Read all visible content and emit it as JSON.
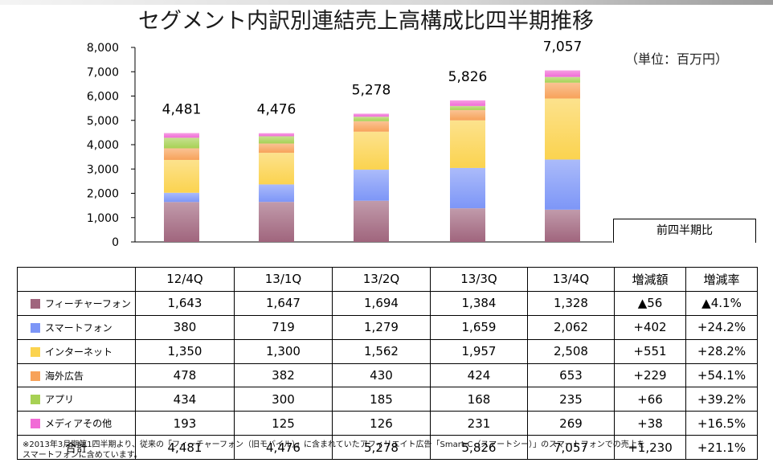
{
  "page": {
    "title": "セグメント内訳別連結売上高構成比四半期推移",
    "unit": "（単位：百万円）",
    "footnote_lines": [
      "※2013年3月期第1四半期より、従来の「フィーチャーフォン（旧モバイル）」に含まれていたアフィリエイト広告「Smart-C（スマートシー）」のスマートフォンでの売上を",
      "スマートフォンに含めています。"
    ]
  },
  "chart_data": {
    "type": "bar",
    "stacked": true,
    "title": "セグメント内訳別連結売上高構成比四半期推移",
    "categories": [
      "12/4Q",
      "13/1Q",
      "13/2Q",
      "13/3Q",
      "13/4Q"
    ],
    "series": [
      {
        "name": "フィーチャーフォン",
        "values": [
          1643,
          1647,
          1694,
          1384,
          1328
        ],
        "color": "#a0657d"
      },
      {
        "name": "スマートフォン",
        "values": [
          380,
          719,
          1279,
          1659,
          2062
        ],
        "color": "#7d96f7"
      },
      {
        "name": "インターネット",
        "values": [
          1350,
          1300,
          1562,
          1957,
          2508
        ],
        "color": "#fbd34f"
      },
      {
        "name": "海外広告",
        "values": [
          478,
          382,
          430,
          424,
          653
        ],
        "color": "#f7a25a"
      },
      {
        "name": "アプリ",
        "values": [
          434,
          300,
          185,
          168,
          235
        ],
        "color": "#a7d154"
      },
      {
        "name": "メディアその他",
        "values": [
          193,
          125,
          126,
          231,
          269
        ],
        "color": "#f16bd6"
      }
    ],
    "totals": [
      4481,
      4476,
      5278,
      5826,
      7057
    ],
    "total_label": "合計",
    "y_ticks": [
      0,
      1000,
      2000,
      3000,
      4000,
      5000,
      6000,
      7000,
      8000
    ],
    "ylim": [
      0,
      8000
    ],
    "xlabel": "",
    "ylabel": "百万円"
  },
  "table": {
    "compare_header": "前四半期比",
    "change_header": "増減額",
    "rate_header": "増減率",
    "rows": [
      {
        "name": "フィーチャーフォン",
        "values": [
          "1,643",
          "1,647",
          "1,694",
          "1,384",
          "1,328"
        ],
        "change": "▲56",
        "rate": "▲4.1%"
      },
      {
        "name": "スマートフォン",
        "values": [
          "380",
          "719",
          "1,279",
          "1,659",
          "2,062"
        ],
        "change": "+402",
        "rate": "+24.2%"
      },
      {
        "name": "インターネット",
        "values": [
          "1,350",
          "1,300",
          "1,562",
          "1,957",
          "2,508"
        ],
        "change": "+551",
        "rate": "+28.2%"
      },
      {
        "name": "海外広告",
        "values": [
          "478",
          "382",
          "430",
          "424",
          "653"
        ],
        "change": "+229",
        "rate": "+54.1%"
      },
      {
        "name": "アプリ",
        "values": [
          "434",
          "300",
          "185",
          "168",
          "235"
        ],
        "change": "+66",
        "rate": "+39.2%"
      },
      {
        "name": "メディアその他",
        "values": [
          "193",
          "125",
          "126",
          "231",
          "269"
        ],
        "change": "+38",
        "rate": "+16.5%"
      }
    ],
    "total_row": {
      "name": "合計",
      "values": [
        "4,481",
        "4,476",
        "5,278",
        "5,826",
        "7,057"
      ],
      "change": "+1,230",
      "rate": "+21.1%"
    }
  }
}
